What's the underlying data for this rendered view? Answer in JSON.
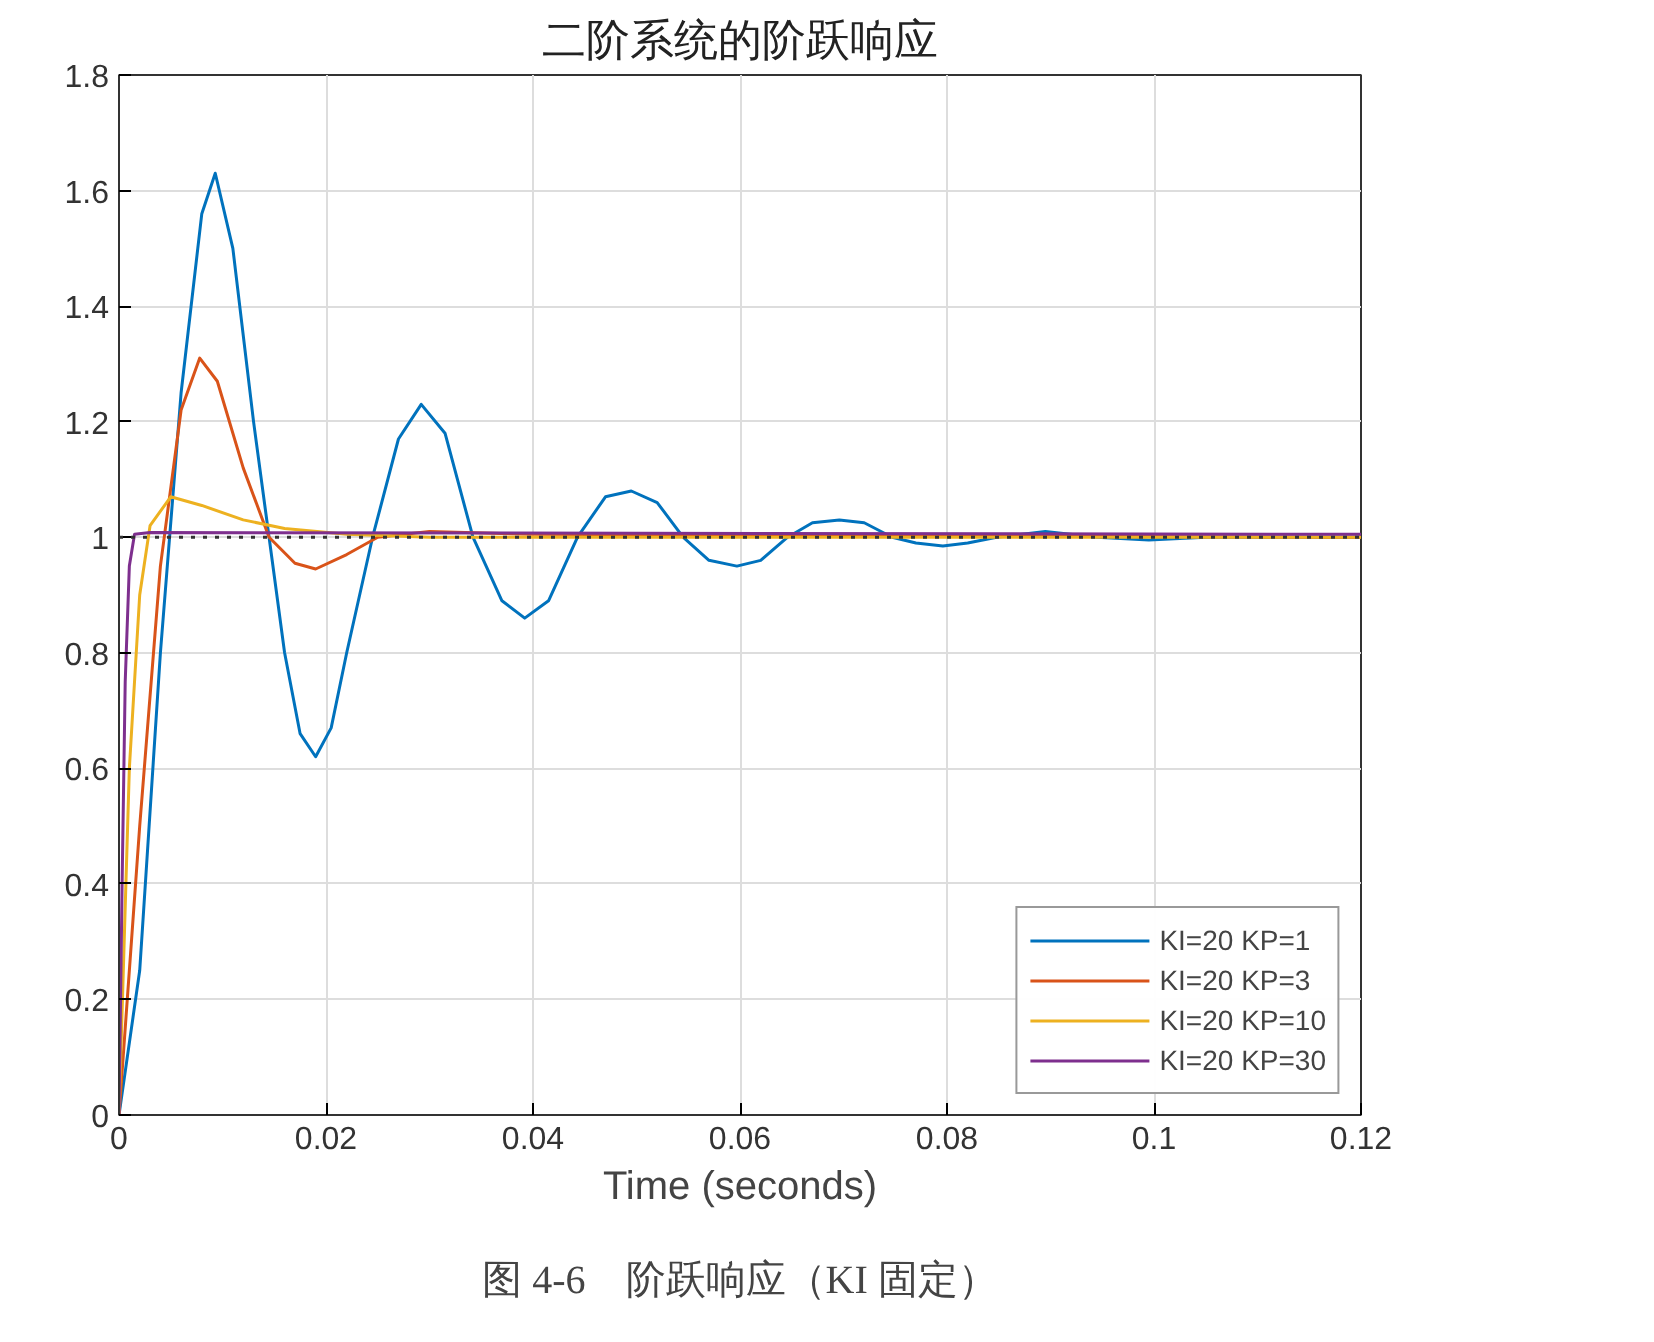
{
  "chart_data": {
    "type": "line",
    "title": "二阶系统的阶跃响应",
    "xlabel": "Time (seconds)",
    "annotations": [
      "图 4-6　阶跃响应（KI 固定）"
    ],
    "xlim": [
      0,
      0.12
    ],
    "xticks": [
      0,
      0.02,
      0.04,
      0.06,
      0.08,
      0.1,
      0.12
    ],
    "ylim": [
      0,
      1.8
    ],
    "yticks": [
      0,
      0.2,
      0.4,
      0.6,
      0.8,
      1,
      1.2,
      1.4,
      1.6,
      1.8
    ],
    "grid": true,
    "legend": "bottom right",
    "line_style": "solid",
    "ref_lines": [
      {
        "axis": "y",
        "value": 1,
        "color": "#333333",
        "line_style": "dotted"
      }
    ],
    "series": [
      {
        "name": "KI=20 KP=1",
        "color": "#0072bd",
        "x": [
          0,
          0.002,
          0.004,
          0.006,
          0.008,
          0.0093,
          0.011,
          0.013,
          0.0145,
          0.016,
          0.0175,
          0.019,
          0.0205,
          0.022,
          0.0245,
          0.027,
          0.0292,
          0.0315,
          0.0342,
          0.037,
          0.0392,
          0.0415,
          0.0443,
          0.047,
          0.0495,
          0.052,
          0.0545,
          0.057,
          0.0597,
          0.062,
          0.0646,
          0.067,
          0.0696,
          0.072,
          0.0747,
          0.077,
          0.0796,
          0.082,
          0.0848,
          0.0895,
          0.0945,
          0.0995,
          0.105,
          0.12
        ],
        "values": [
          0,
          0.25,
          0.8,
          1.25,
          1.56,
          1.63,
          1.5,
          1.2,
          1.0,
          0.8,
          0.66,
          0.62,
          0.67,
          0.8,
          1.0,
          1.17,
          1.23,
          1.18,
          1.0,
          0.89,
          0.86,
          0.89,
          1.0,
          1.07,
          1.08,
          1.06,
          1.0,
          0.96,
          0.95,
          0.96,
          1.0,
          1.025,
          1.03,
          1.025,
          1.0,
          0.99,
          0.985,
          0.99,
          1.0,
          1.01,
          1.0,
          0.995,
          1.0,
          1.0
        ]
      },
      {
        "name": "KI=20 KP=3",
        "color": "#d95319",
        "x": [
          0,
          0.002,
          0.004,
          0.006,
          0.0078,
          0.0095,
          0.012,
          0.0145,
          0.017,
          0.019,
          0.022,
          0.025,
          0.03,
          0.04,
          0.12
        ],
        "values": [
          0,
          0.5,
          0.95,
          1.22,
          1.31,
          1.27,
          1.12,
          1.0,
          0.955,
          0.945,
          0.97,
          1.0,
          1.01,
          1.005,
          1.0
        ]
      },
      {
        "name": "KI=20 KP=10",
        "color": "#edb120",
        "x": [
          0,
          0.001,
          0.002,
          0.003,
          0.005,
          0.008,
          0.012,
          0.016,
          0.022,
          0.03,
          0.12
        ],
        "values": [
          0,
          0.6,
          0.9,
          1.02,
          1.07,
          1.055,
          1.03,
          1.015,
          1.005,
          1.0,
          1.0
        ]
      },
      {
        "name": "KI=20 KP=30",
        "color": "#7e2f8e",
        "x": [
          0,
          0.0003,
          0.0006,
          0.001,
          0.0015,
          0.003,
          0.12
        ],
        "values": [
          0,
          0.4,
          0.75,
          0.95,
          1.005,
          1.008,
          1.005
        ]
      }
    ]
  }
}
